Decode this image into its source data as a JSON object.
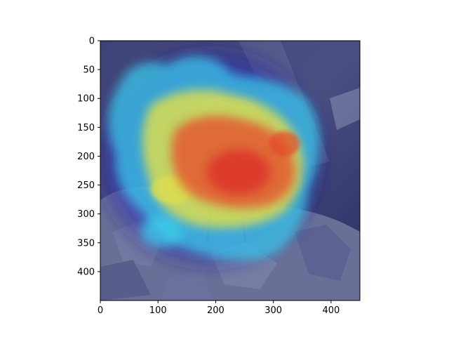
{
  "image": {
    "subject": "bird-perched-on-rock",
    "overlay": "attention-heatmap",
    "colormap": "jet"
  },
  "axes": {
    "x_ticks": [
      "0",
      "100",
      "200",
      "300",
      "400"
    ],
    "y_ticks": [
      "0",
      "50",
      "100",
      "150",
      "200",
      "250",
      "300",
      "350",
      "400"
    ],
    "x_range": [
      0,
      450
    ],
    "y_range": [
      0,
      450
    ]
  },
  "colors": {
    "background_sky": "#4b4f7e",
    "rock": "#646a92",
    "heat_low": "#1a1aa0",
    "heat_mid": "#37d6ff",
    "heat_warm": "#f2e835",
    "heat_high": "#e23a2c"
  }
}
